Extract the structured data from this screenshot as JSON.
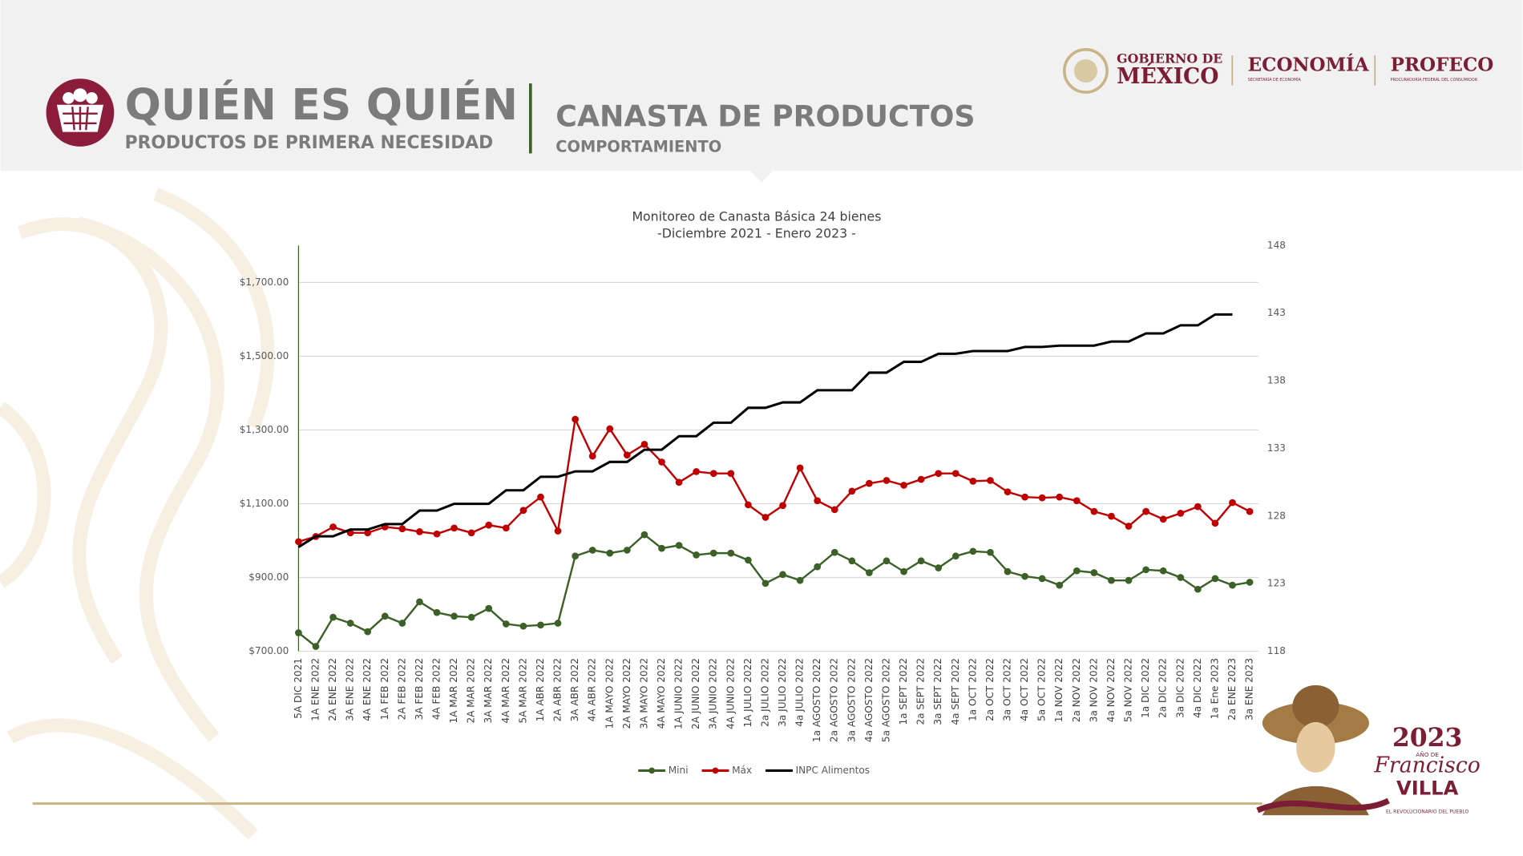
{
  "header": {
    "title": "QUIÉN ES QUIÉN",
    "subtitle": "PRODUCTOS DE PRIMERA NECESIDAD",
    "section_title": "CANASTA DE PRODUCTOS",
    "section_subtitle": "COMPORTAMIENTO",
    "logos": {
      "gobierno_line1": "GOBIERNO DE",
      "gobierno_line2": "MÉXICO",
      "economia": "ECONOMÍA",
      "economia_sub": "SECRETARÍA DE ECONOMÍA",
      "profeco": "PROFECO",
      "profeco_sub": "PROCURADURÍA FEDERAL DEL CONSUMIDOR"
    }
  },
  "footer": {
    "year": "2023",
    "year_sub": "AÑO DE",
    "name1": "Francisco",
    "name2": "VILLA",
    "tagline": "EL REVOLUCIONARIO DEL PUEBLO"
  },
  "chart_data": {
    "type": "line",
    "title": "Monitoreo de Canasta Básica 24 bienes",
    "subtitle": "-Diciembre 2021 - Enero 2023 -",
    "categories": [
      "5A DIC 2021",
      "1A ENE 2022",
      "2A ENE 2022",
      "3A ENE 2022",
      "4A ENE 2022",
      "1A FEB 2022",
      "2A FEB 2022",
      "3A FEB 2022",
      "4A FEB 2022",
      "1A MAR 2022",
      "2A MAR 2022",
      "3A MAR 2022",
      "4A MAR 2022",
      "5A MAR 2022",
      "1A ABR 2022",
      "2A ABR 2022",
      "3A ABR 2022",
      "4A ABR 2022",
      "1A MAYO 2022",
      "2A MAYO 2022",
      "3A MAYO 2022",
      "4A MAYO 2022",
      "1A JUNIO 2022",
      "2A JUNIO 2022",
      "3A JUNIO 2022",
      "4A JUNIO 2022",
      "1A JULIO 2022",
      "2a JULIO 2022",
      "3a JULIO 2022",
      "4a JULIO 2022",
      "1a AGOSTO 2022",
      "2a AGOSTO 2022",
      "3a AGOSTO 2022",
      "4a AGOSTO 2022",
      "5a AGOSTO 2022",
      "1a SEPT 2022",
      "2a SEPT 2022",
      "3a SEPT 2022",
      "4a SEPT 2022",
      "1a OCT 2022",
      "2a OCT 2022",
      "3a OCT 2022",
      "4a OCT 2022",
      "5a OCT 2022",
      "1a NOV 2022",
      "2a NOV 2022",
      "3a NOV 2022",
      "4a NOV 2022",
      "5a NOV 2022",
      "1a DIC 2022",
      "2a DIC 2022",
      "3a DIC 2022",
      "4a DIC 2022",
      "1a Ene 2023",
      "2a ENE 2023",
      "3a ENE 2023"
    ],
    "series": [
      {
        "name": "Mini",
        "color": "#3b6128",
        "marker": "circle",
        "values": [
          750,
          713,
          792,
          776,
          753,
          795,
          776,
          834,
          805,
          795,
          792,
          816,
          774,
          768,
          771,
          776,
          958,
          974,
          966,
          974,
          1016,
          979,
          987,
          961,
          966,
          966,
          947,
          884,
          908,
          892,
          929,
          968,
          945,
          913,
          945,
          916,
          945,
          926,
          958,
          971,
          968,
          916,
          903,
          897,
          879,
          918,
          913,
          892,
          892,
          921,
          918,
          900,
          868,
          897,
          879,
          887
        ]
      },
      {
        "name": "Máx",
        "color": "#c00000",
        "marker": "circle",
        "values": [
          997,
          1011,
          1037,
          1021,
          1021,
          1037,
          1032,
          1024,
          1018,
          1034,
          1021,
          1042,
          1034,
          1082,
          1118,
          1026,
          1329,
          1229,
          1303,
          1232,
          1261,
          1213,
          1158,
          1187,
          1182,
          1182,
          1097,
          1063,
          1095,
          1197,
          1108,
          1084,
          1134,
          1155,
          1163,
          1150,
          1166,
          1182,
          1182,
          1161,
          1163,
          1132,
          1118,
          1116,
          1118,
          1108,
          1079,
          1066,
          1039,
          1079,
          1058,
          1074,
          1092,
          1047,
          1103,
          1079
        ]
      },
      {
        "name": "INPC Alimentos",
        "color": "#000000",
        "marker": "none",
        "axis": "y2",
        "values": [
          125.7,
          126.5,
          126.5,
          127.0,
          127.0,
          127.4,
          127.4,
          128.4,
          128.4,
          128.9,
          128.9,
          128.9,
          129.9,
          129.9,
          130.9,
          130.9,
          131.3,
          131.3,
          132.0,
          132.0,
          132.9,
          132.9,
          133.9,
          133.9,
          134.9,
          134.9,
          136.0,
          136.0,
          136.4,
          136.4,
          137.3,
          137.3,
          137.3,
          138.6,
          138.6,
          139.4,
          139.4,
          140.0,
          140.0,
          140.2,
          140.2,
          140.2,
          140.5,
          140.5,
          140.6,
          140.6,
          140.6,
          140.9,
          140.9,
          141.5,
          141.5,
          142.1,
          142.1,
          142.9,
          142.9,
          null
        ]
      }
    ],
    "ylim": [
      700,
      1800
    ],
    "yticks": [
      {
        "value": 700,
        "label": "$700.00"
      },
      {
        "value": 900,
        "label": "$900.00"
      },
      {
        "value": 1100,
        "label": "$1,100.00"
      },
      {
        "value": 1300,
        "label": "$1,300.00"
      },
      {
        "value": 1500,
        "label": "$1,500.00"
      },
      {
        "value": 1700,
        "label": "$1,700.00"
      }
    ],
    "y2lim": [
      118,
      148
    ],
    "y2ticks": [
      118,
      123,
      128,
      133,
      138,
      143,
      148
    ],
    "grid": true,
    "legend": "bottom"
  }
}
